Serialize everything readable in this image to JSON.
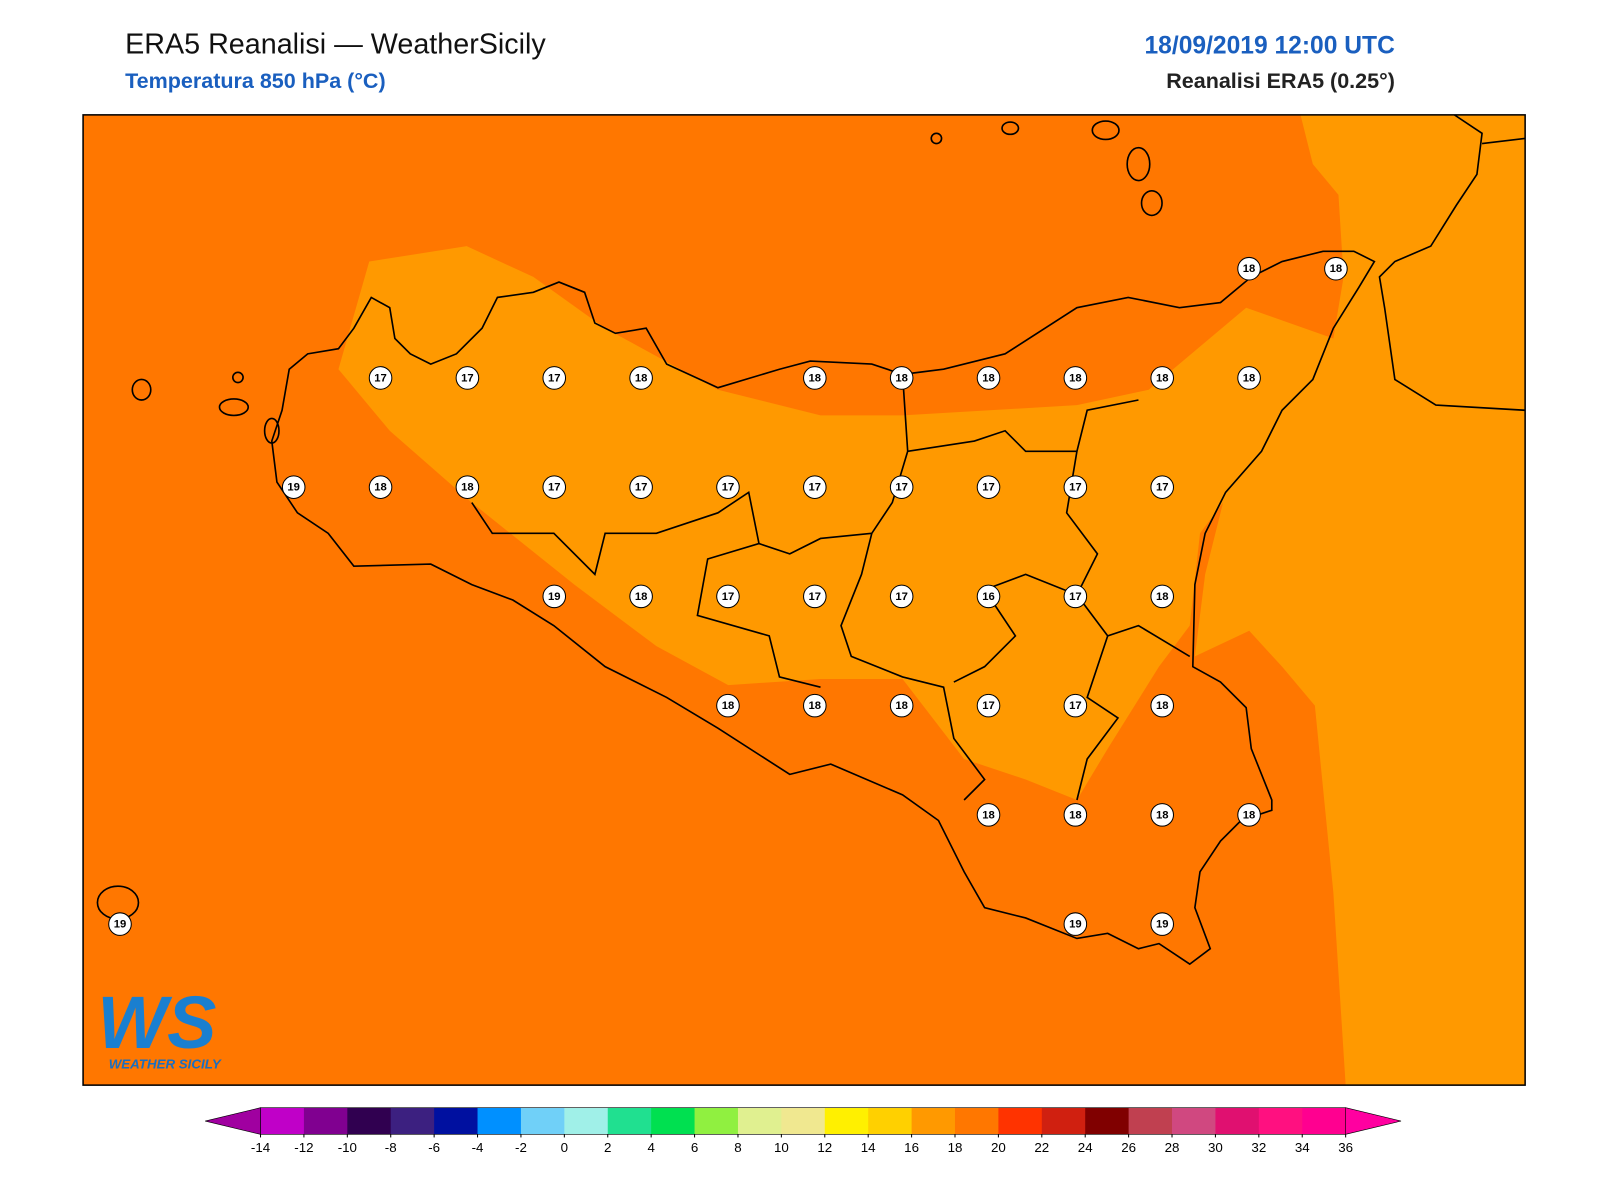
{
  "header": {
    "title": "ERA5 Reanalisi — WeatherSicily",
    "subtitle": "Temperatura 850 hPa (°C)",
    "datetime": "18/09/2019 12:00 UTC",
    "source": "Reanalisi ERA5 (0.25°)"
  },
  "map": {
    "stations": {
      "rows": [
        [
          null,
          null,
          null,
          null,
          null,
          null,
          null,
          null,
          null,
          null,
          null,
          null,
          null,
          18,
          18
        ],
        [
          null,
          null,
          null,
          17,
          17,
          17,
          18,
          null,
          18,
          18,
          18,
          18,
          18,
          18,
          null
        ],
        [
          null,
          null,
          19,
          18,
          18,
          17,
          17,
          17,
          17,
          17,
          17,
          17,
          17,
          null,
          null
        ],
        [
          null,
          null,
          null,
          null,
          null,
          19,
          18,
          17,
          17,
          17,
          16,
          17,
          18,
          null,
          null
        ],
        [
          null,
          null,
          null,
          null,
          null,
          null,
          null,
          18,
          18,
          18,
          17,
          17,
          18,
          null,
          null
        ],
        [
          null,
          null,
          null,
          null,
          null,
          null,
          null,
          null,
          null,
          null,
          18,
          18,
          18,
          18,
          null
        ],
        [
          19,
          null,
          null,
          null,
          null,
          null,
          null,
          null,
          null,
          null,
          null,
          19,
          19,
          null,
          null
        ]
      ]
    }
  },
  "logo": {
    "mark": "WS",
    "caption": "WEATHER SICILY"
  },
  "colorbar": {
    "ticks": [
      -14,
      -12,
      -10,
      -8,
      -6,
      -4,
      -2,
      0,
      2,
      4,
      6,
      8,
      10,
      12,
      14,
      16,
      18,
      20,
      22,
      24,
      26,
      28,
      30,
      32,
      34,
      36
    ],
    "colors": [
      "#c000c8",
      "#800090",
      "#300050",
      "#3c2080",
      "#0010a0",
      "#0090ff",
      "#70d0f8",
      "#a0f0e8",
      "#20e090",
      "#00e050",
      "#90f040",
      "#e0f090",
      "#f0e890",
      "#fff000",
      "#ffd000",
      "#ff9900",
      "#ff7700",
      "#ff3300",
      "#d02010",
      "#800000",
      "#c04050",
      "#d04880",
      "#e01070",
      "#ff1080",
      "#ff0090"
    ],
    "under": "#a000a0",
    "over": "#ff00a0"
  }
}
